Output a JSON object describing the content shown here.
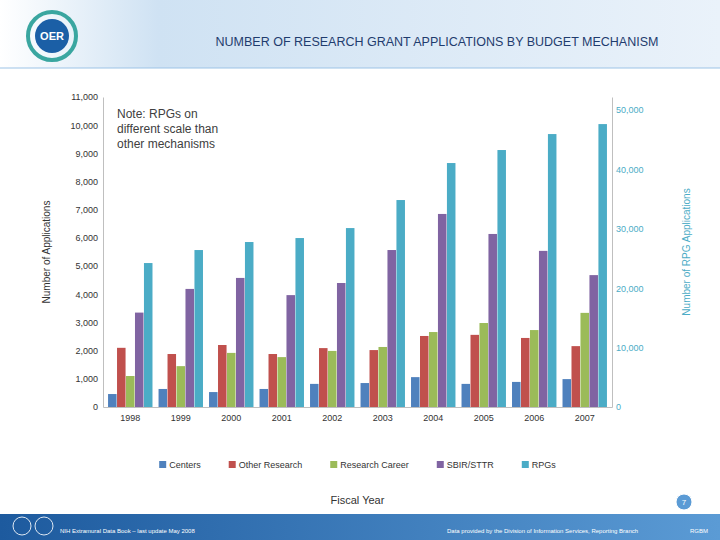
{
  "page": {
    "logo_text": "OER",
    "footer_left": "NIH Extramural Data Book – last update May 2008",
    "footer_right": "Data provided by the Division of Information Services, Reporting Branch",
    "footer_code": "RGBM",
    "page_number": "7"
  },
  "chart_data": {
    "type": "bar",
    "title": "NUMBER OF RESEARCH GRANT APPLICATIONS BY BUDGET MECHANISM",
    "annotation": "Note: RPGs on different scale than other mechanisms",
    "x_label": "Fiscal Year",
    "y_label": "Number of Applications",
    "y2_label": "Number of RPG Applications",
    "categories": [
      "1998",
      "1999",
      "2000",
      "2001",
      "2002",
      "2003",
      "2004",
      "2005",
      "2006",
      "2007"
    ],
    "series": [
      {
        "name": "Centers",
        "color": "#4f81bd",
        "values": [
          460,
          640,
          530,
          640,
          820,
          850,
          1060,
          820,
          890,
          990
        ]
      },
      {
        "name": "Other Research",
        "color": "#c0504d",
        "values": [
          2100,
          1880,
          2200,
          1880,
          2090,
          2020,
          2520,
          2560,
          2450,
          2160
        ]
      },
      {
        "name": "Research Career",
        "color": "#9bbb59",
        "values": [
          1100,
          1450,
          1920,
          1770,
          1990,
          2130,
          2660,
          2980,
          2730,
          3340
        ]
      },
      {
        "name": "SBIR/STTR",
        "color": "#8064a2",
        "values": [
          3350,
          4190,
          4580,
          3970,
          4400,
          5570,
          6850,
          6140,
          5540,
          4680
        ]
      },
      {
        "name": "RPGs",
        "color": "#4bacc6",
        "axis": "y2",
        "values": [
          24240,
          26430,
          27780,
          28450,
          30130,
          34850,
          41080,
          43270,
          45960,
          47640
        ]
      }
    ],
    "ylim": [
      0,
      11000
    ],
    "yticks": [
      0,
      {
        "value": 1000,
        "label": "1,000"
      },
      {
        "value": 2000,
        "label": "2,000"
      },
      {
        "value": 3000,
        "label": "3,000"
      },
      {
        "value": 4000,
        "label": "4,000"
      },
      {
        "value": 5000,
        "label": "5,000"
      },
      {
        "value": 6000,
        "label": "6,000"
      },
      {
        "value": 7000,
        "label": "7,000"
      },
      {
        "value": 8000,
        "label": "8,000"
      },
      {
        "value": 9000,
        "label": "9,000"
      },
      {
        "value": 10000,
        "label": "10,000"
      },
      {
        "value": 11000,
        "label": "11,000"
      }
    ],
    "y2lim": [
      0,
      52200
    ],
    "y2ticks": [
      0,
      {
        "value": 10000,
        "label": "10,000"
      },
      {
        "value": 20000,
        "label": "20,000"
      },
      {
        "value": 30000,
        "label": "30,000"
      },
      {
        "value": 40000,
        "label": "40,000"
      },
      {
        "value": 50000,
        "label": "50,000"
      }
    ],
    "legend": "bottom",
    "grid": false
  }
}
